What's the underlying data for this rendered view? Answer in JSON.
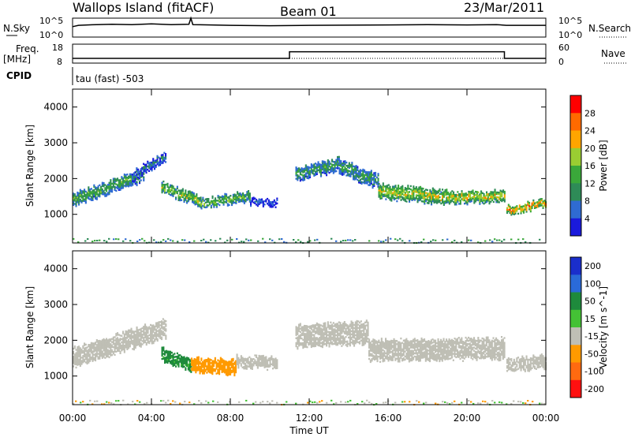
{
  "header": {
    "station": "Wallops Island (fitACF)",
    "beam": "Beam 01",
    "date": "23/Mar/2011"
  },
  "strip_labels": {
    "nsky": "N.Sky",
    "nsearch": "N.Search",
    "freq": "Freq.",
    "freq_unit": "[MHz]",
    "nave": "Nave",
    "cpid": "CPID",
    "cpid_value": "tau (fast) -503"
  },
  "strip_ticks": {
    "nsky_top": "10^5",
    "nsky_bottom": "10^0",
    "nsearch_top": "10^5",
    "nsearch_bottom": "10^0",
    "freq_top": "18",
    "freq_bottom": "8",
    "nave_top": "60",
    "nave_bottom": "0"
  },
  "colors": {
    "power": [
      "#1a1adc",
      "#2f6bd2",
      "#2e8b57",
      "#3aa83a",
      "#9acd32",
      "#ffa500",
      "#ff6a00",
      "#ff0000"
    ],
    "velocity": [
      "#1a2ecc",
      "#2a6ad8",
      "#1e8a3c",
      "#44c235",
      "#bfbfb5",
      "#ff9a00",
      "#ff6a10",
      "#ff1010"
    ]
  },
  "chart_data": [
    {
      "type": "heatmap",
      "name": "power",
      "xlabel": "Time UT",
      "ylabel": "Slant Range [km]",
      "x_ticks": [
        "00:00",
        "04:00",
        "08:00",
        "12:00",
        "16:00",
        "20:00",
        "00:00"
      ],
      "x_range_hours": [
        0,
        24
      ],
      "y_ticks": [
        1000,
        2000,
        3000,
        4000
      ],
      "ylim": [
        200,
        4500
      ],
      "colorbar": {
        "label": "Power [dB]",
        "ticks": [
          "4",
          "8",
          "12",
          "16",
          "20",
          "24",
          "28"
        ]
      },
      "echo_bands": [
        {
          "t0": 0.0,
          "t1": 3.6,
          "r_start": 1400,
          "r_end": 2100,
          "width": 350,
          "level": 14
        },
        {
          "t0": 3.0,
          "t1": 4.7,
          "r_start": 2050,
          "r_end": 2600,
          "width": 250,
          "level": 8
        },
        {
          "t0": 4.5,
          "t1": 6.5,
          "r_start": 1750,
          "r_end": 1350,
          "width": 300,
          "level": 18
        },
        {
          "t0": 6.5,
          "t1": 9.0,
          "r_start": 1300,
          "r_end": 1500,
          "width": 250,
          "level": 16
        },
        {
          "t0": 9.0,
          "t1": 10.4,
          "r_start": 1350,
          "r_end": 1300,
          "width": 150,
          "level": 6
        },
        {
          "t0": 11.3,
          "t1": 13.5,
          "r_start": 2100,
          "r_end": 2400,
          "width": 350,
          "level": 12
        },
        {
          "t0": 13.5,
          "t1": 15.5,
          "r_start": 2350,
          "r_end": 1900,
          "width": 400,
          "level": 12
        },
        {
          "t0": 15.5,
          "t1": 19.0,
          "r_start": 1650,
          "r_end": 1450,
          "width": 400,
          "level": 20
        },
        {
          "t0": 19.0,
          "t1": 21.9,
          "r_start": 1450,
          "r_end": 1500,
          "width": 300,
          "level": 22
        },
        {
          "t0": 22.0,
          "t1": 24.0,
          "r_start": 1100,
          "r_end": 1300,
          "width": 200,
          "level": 26
        }
      ]
    },
    {
      "type": "heatmap",
      "name": "velocity",
      "xlabel": "Time UT",
      "ylabel": "Slant Range [km]",
      "x_ticks": [
        "00:00",
        "04:00",
        "08:00",
        "12:00",
        "16:00",
        "20:00",
        "00:00"
      ],
      "x_range_hours": [
        0,
        24
      ],
      "y_ticks": [
        1000,
        2000,
        3000,
        4000
      ],
      "ylim": [
        200,
        4500
      ],
      "colorbar": {
        "label": "Velocity [m s^-1]",
        "ticks": [
          "200",
          "100",
          "50",
          "15",
          "-15",
          "-50",
          "-100",
          "-200"
        ]
      },
      "echo_bands": [
        {
          "t0": 0.0,
          "t1": 4.7,
          "r_start": 1500,
          "r_end": 2300,
          "width": 500,
          "level": 0
        },
        {
          "t0": 4.5,
          "t1": 6.0,
          "r_start": 1600,
          "r_end": 1300,
          "width": 350,
          "level": 40
        },
        {
          "t0": 6.0,
          "t1": 8.3,
          "r_start": 1300,
          "r_end": 1250,
          "width": 400,
          "level": -30
        },
        {
          "t0": 8.3,
          "t1": 10.4,
          "r_start": 1400,
          "r_end": 1350,
          "width": 300,
          "level": 0
        },
        {
          "t0": 11.3,
          "t1": 15.0,
          "r_start": 2100,
          "r_end": 2200,
          "width": 600,
          "level": 0
        },
        {
          "t0": 15.0,
          "t1": 21.9,
          "r_start": 1700,
          "r_end": 1750,
          "width": 550,
          "level": 0
        },
        {
          "t0": 22.0,
          "t1": 24.0,
          "r_start": 1300,
          "r_end": 1400,
          "width": 350,
          "level": 0
        }
      ]
    }
  ],
  "strips": {
    "nsky_hours": [
      0,
      0.3,
      1,
      2,
      3,
      4,
      5,
      5.9,
      6.0,
      6.1,
      7,
      8,
      10,
      12,
      14,
      16,
      18,
      20,
      21.5,
      22,
      24
    ],
    "nsky_values": [
      0.55,
      0.62,
      0.65,
      0.68,
      0.66,
      0.7,
      0.66,
      0.68,
      1.0,
      0.66,
      0.64,
      0.62,
      0.6,
      0.62,
      0.63,
      0.64,
      0.66,
      0.64,
      0.66,
      0.62,
      0.62
    ],
    "freq_steps": [
      {
        "t0": 0,
        "t1": 11.0,
        "mhz": 10.5
      },
      {
        "t0": 11.0,
        "t1": 21.9,
        "mhz": 14.0
      },
      {
        "t0": 21.9,
        "t1": 24,
        "mhz": 10.5
      }
    ],
    "nave_level": 15
  }
}
